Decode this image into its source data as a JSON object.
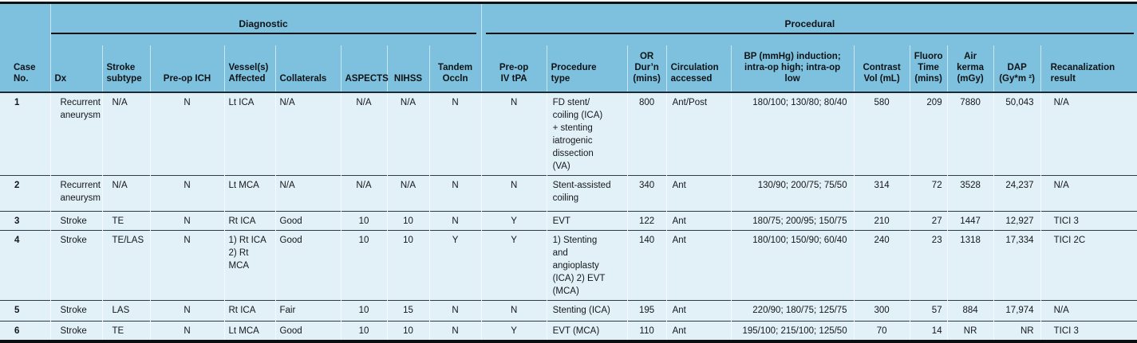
{
  "colors": {
    "header_bg": "#7dc1df",
    "row_bg": "#e2f0f8",
    "rule_dark": "#2e3b45",
    "rule_black": "#0b0f12"
  },
  "group_headers": {
    "diagnostic": "Diagnostic",
    "procedural": "Procedural"
  },
  "table": {
    "columns": [
      {
        "key": "case-no",
        "label": "Case\nNo."
      },
      {
        "key": "dx",
        "label": "Dx"
      },
      {
        "key": "stroke-subtype",
        "label": "Stroke\nsubtype"
      },
      {
        "key": "pre-op-ich",
        "label": "Pre-op ICH"
      },
      {
        "key": "vessels-affected",
        "label": "Vessel(s)\nAffected"
      },
      {
        "key": "collaterals",
        "label": "Collaterals"
      },
      {
        "key": "aspects",
        "label": "ASPECTS"
      },
      {
        "key": "nihss",
        "label": "NIHSS"
      },
      {
        "key": "tandem-occln",
        "label": "Tandem\nOccln"
      },
      {
        "key": "pre-op-iv-tpa",
        "label": "Pre-op\nIV tPA"
      },
      {
        "key": "procedure-type",
        "label": "Procedure\ntype"
      },
      {
        "key": "or-durn",
        "label": "OR\nDur’n\n(mins)"
      },
      {
        "key": "circulation-accessed",
        "label": "Circulation\naccessed"
      },
      {
        "key": "bp",
        "label": "BP (mmHg) induction;\nintra-op high; intra-op\nlow"
      },
      {
        "key": "contrast-vol",
        "label": "Contrast\nVol (mL)"
      },
      {
        "key": "fluoro-time",
        "label": "Fluoro\nTime\n(mins)"
      },
      {
        "key": "air-kerma",
        "label": "Air\nkerma\n(mGy)"
      },
      {
        "key": "dap",
        "label": "DAP\n(Gy*m ²)"
      },
      {
        "key": "recanalization-result",
        "label": "Recanalization\nresult"
      }
    ],
    "rows": [
      [
        "1",
        "Recurrent\naneurysm",
        "N/A",
        "N",
        "Lt ICA",
        "N/A",
        "N/A",
        "N/A",
        "N",
        "N",
        "FD stent/\ncoiling (ICA)\n+ stenting\niatrogenic\ndissection\n(VA)",
        "800",
        "Ant/Post",
        "180/100; 130/80; 80/40",
        "580",
        "209",
        "7880",
        "50,043",
        "N/A"
      ],
      [
        "2",
        "Recurrent\naneurysm",
        "N/A",
        "N",
        "Lt MCA",
        "N/A",
        "N/A",
        "N/A",
        "N",
        "N",
        "Stent-assisted\ncoiling",
        "340",
        "Ant",
        "130/90; 200/75; 75/50",
        "314",
        "72",
        "3528",
        "24,237",
        "N/A"
      ],
      [
        "3",
        "Stroke",
        "TE",
        "N",
        "Rt ICA",
        "Good",
        "10",
        "10",
        "N",
        "Y",
        "EVT",
        "122",
        "Ant",
        "180/75; 200/95; 150/75",
        "210",
        "27",
        "1447",
        "12,927",
        "TICI 3"
      ],
      [
        "4",
        "Stroke",
        "TE/LAS",
        "N",
        "1) Rt ICA\n2) Rt MCA",
        "Good",
        "10",
        "10",
        "Y",
        "Y",
        "1) Stenting\nand\nangioplasty\n(ICA) 2) EVT\n(MCA)",
        "140",
        "Ant",
        "180/100; 150/90; 60/40",
        "240",
        "23",
        "1318",
        "17,334",
        "TICI 2C"
      ],
      [
        "5",
        "Stroke",
        "LAS",
        "N",
        "Rt ICA",
        "Fair",
        "10",
        "15",
        "N",
        "N",
        "Stenting (ICA)",
        "195",
        "Ant",
        "220/90; 180/75; 125/75",
        "300",
        "57",
        "884",
        "17,974",
        "N/A"
      ],
      [
        "6",
        "Stroke",
        "TE",
        "N",
        "Lt MCA",
        "Good",
        "10",
        "10",
        "N",
        "Y",
        "EVT (MCA)",
        "110",
        "Ant",
        "195/100; 215/100; 125/50",
        "70",
        "14",
        "NR",
        "NR",
        "TICI 3"
      ]
    ]
  }
}
